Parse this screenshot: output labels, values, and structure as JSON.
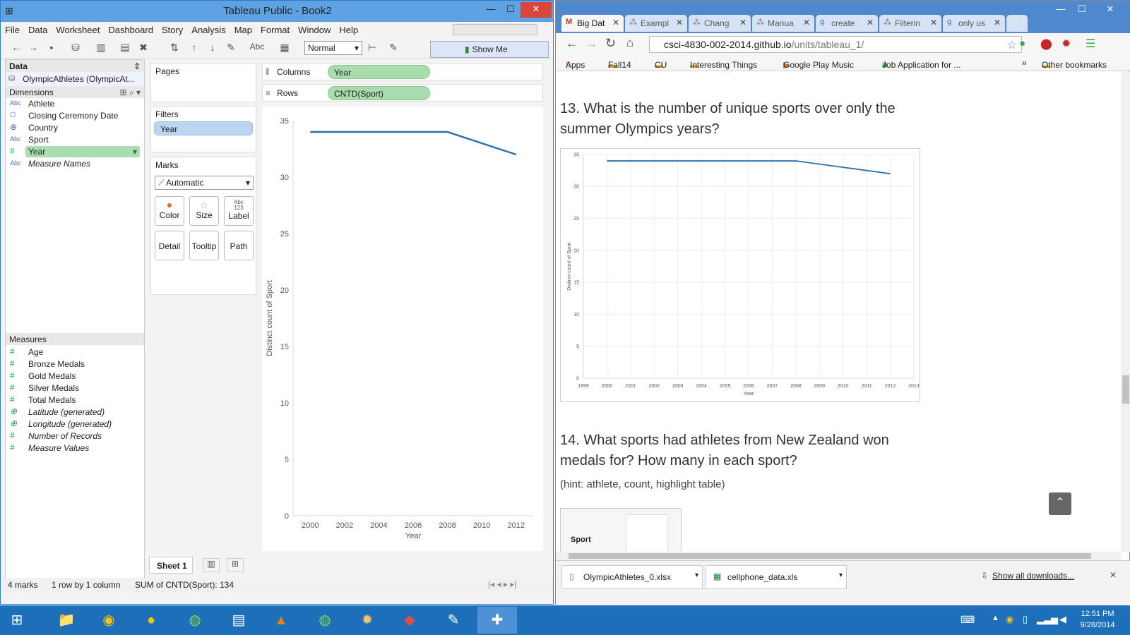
{
  "tableau": {
    "title": "Tableau Public - Book2",
    "menu": [
      "File",
      "Data",
      "Worksheet",
      "Dashboard",
      "Story",
      "Analysis",
      "Map",
      "Format",
      "Window",
      "Help"
    ],
    "toolbar": {
      "fit": "Normal",
      "abc": "Abc",
      "show_me": "Show Me"
    },
    "data_pane": {
      "header": "Data",
      "source": "OlympicAthletes (OlympicAt...",
      "dimensions_header": "Dimensions",
      "dimensions": [
        {
          "icon": "Abc",
          "label": "Athlete"
        },
        {
          "icon": "☐",
          "label": "Closing Ceremony Date"
        },
        {
          "icon": "⊕",
          "label": "Country"
        },
        {
          "icon": "Abc",
          "label": "Sport"
        },
        {
          "icon": "#",
          "label": "Year"
        },
        {
          "icon": "Abc",
          "label": "Measure Names"
        }
      ],
      "measures_header": "Measures",
      "measures": [
        {
          "icon": "#",
          "label": "Age"
        },
        {
          "icon": "#",
          "label": "Bronze Medals"
        },
        {
          "icon": "#",
          "label": "Gold Medals"
        },
        {
          "icon": "#",
          "label": "Silver Medals"
        },
        {
          "icon": "#",
          "label": "Total Medals"
        },
        {
          "icon": "⊕",
          "label": "Latitude (generated)"
        },
        {
          "icon": "⊕",
          "label": "Longitude (generated)"
        },
        {
          "icon": "#",
          "label": "Number of Records"
        },
        {
          "icon": "#",
          "label": "Measure Values"
        }
      ]
    },
    "pages_label": "Pages",
    "filters_label": "Filters",
    "filter_pill": "Year",
    "marks_label": "Marks",
    "marks_type": "Automatic",
    "marks_buttons": [
      "Color",
      "Size",
      "Label",
      "Detail",
      "Tooltip",
      "Path"
    ],
    "label_glyph": "Abc 123",
    "columns_label": "Columns",
    "columns_pill": "Year",
    "rows_label": "Rows",
    "rows_pill": "CNTD(Sport)",
    "sheet_tab": "Sheet 1",
    "status": {
      "marks": "4 marks",
      "dims": "1 row by 1 column",
      "sum": "SUM of CNTD(Sport): 134"
    }
  },
  "chart_data": [
    {
      "type": "line",
      "x": [
        2000,
        2004,
        2008,
        2012
      ],
      "values": [
        34,
        34,
        34,
        32
      ],
      "xlabel": "Year",
      "ylabel": "Distinct count of Sport",
      "xlim": [
        1999,
        2013
      ],
      "ylim": [
        0,
        35
      ],
      "xticks": [
        2000,
        2002,
        2004,
        2006,
        2008,
        2010,
        2012
      ],
      "yticks": [
        0,
        5,
        10,
        15,
        20,
        25,
        30,
        35
      ],
      "grid": false
    },
    {
      "type": "line",
      "x": [
        2000,
        2004,
        2008,
        2012
      ],
      "values": [
        34,
        34,
        34,
        32
      ],
      "xlabel": "Year",
      "ylabel": "Distinct count of Sport",
      "xlim": [
        1999,
        2013
      ],
      "ylim": [
        0,
        35
      ],
      "xticks": [
        1999,
        2000,
        2001,
        2002,
        2003,
        2004,
        2005,
        2006,
        2007,
        2008,
        2009,
        2010,
        2011,
        2012,
        2013
      ],
      "yticks": [
        0,
        5,
        10,
        15,
        20,
        25,
        30,
        35
      ],
      "grid": true
    }
  ],
  "chrome": {
    "tabs": [
      "Big Dat",
      "Exampl",
      "Chang",
      "Manua",
      "create",
      "Filterin",
      "only us"
    ],
    "tab_favs": [
      "M",
      "⁂",
      "⁂",
      "⁂",
      "g",
      "⁂",
      "g"
    ],
    "url_host": "csci-4830-002-2014.github.io",
    "url_path": "/units/tableau_1/",
    "bookmarks": [
      "Apps",
      "Fall14",
      "CU",
      "Interesting Things",
      "Google Play Music",
      "Job Application for ...",
      "»",
      "Other bookmarks"
    ],
    "q13": "13. What is the number of unique sports over only the summer Olympics years?",
    "q14": "14. What sports had athletes from New Zealand won medals for? How many in each sport?",
    "hint": "(hint: athlete, count, highlight table)",
    "table_header": "Sport",
    "downloads": [
      "OlympicAthletes_0.xlsx",
      "cellphone_data.xls"
    ],
    "show_all": "Show all downloads...",
    "close_x": "✕"
  },
  "taskbar": {
    "time": "12:51 PM",
    "date": "9/28/2014"
  }
}
